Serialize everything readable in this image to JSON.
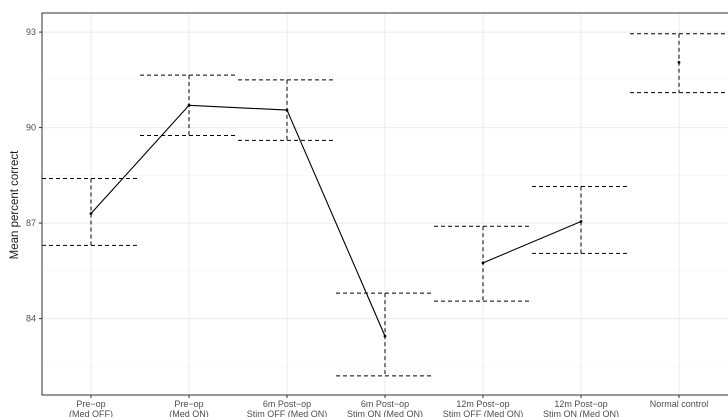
{
  "chart_data": {
    "type": "line",
    "title": "",
    "xlabel": "",
    "ylabel": "Mean percent correct",
    "ylim": [
      81.6,
      93.6
    ],
    "yticks": [
      84,
      87,
      90,
      93
    ],
    "grid": true,
    "categories": [
      [
        "Pre−op",
        "(Med OFF)"
      ],
      [
        "Pre−op",
        "(Med ON)"
      ],
      [
        "6m Post−op",
        "Stim OFF (Med ON)"
      ],
      [
        "6m Post−op",
        "Stim ON (Med ON)"
      ],
      [
        "12m Post−op",
        "Stim OFF (Med ON)"
      ],
      [
        "12m Post−op",
        "Stim ON (Med ON)"
      ],
      [
        "Normal control"
      ]
    ],
    "series": [
      {
        "values": [
          87.3,
          90.7,
          90.55,
          83.45,
          85.75,
          87.05,
          92.05
        ],
        "upper": [
          88.4,
          91.65,
          91.5,
          84.8,
          86.9,
          88.15,
          92.95
        ],
        "lower": [
          86.3,
          89.75,
          89.6,
          82.2,
          84.55,
          86.05,
          91.1
        ],
        "connected_groups": [
          [
            0,
            1,
            2,
            3
          ],
          [
            4,
            5
          ]
        ]
      }
    ],
    "colors": {
      "line": "#000000",
      "grid": "#ebebeb",
      "border": "#333333",
      "tick": "#4d4d4d"
    }
  }
}
